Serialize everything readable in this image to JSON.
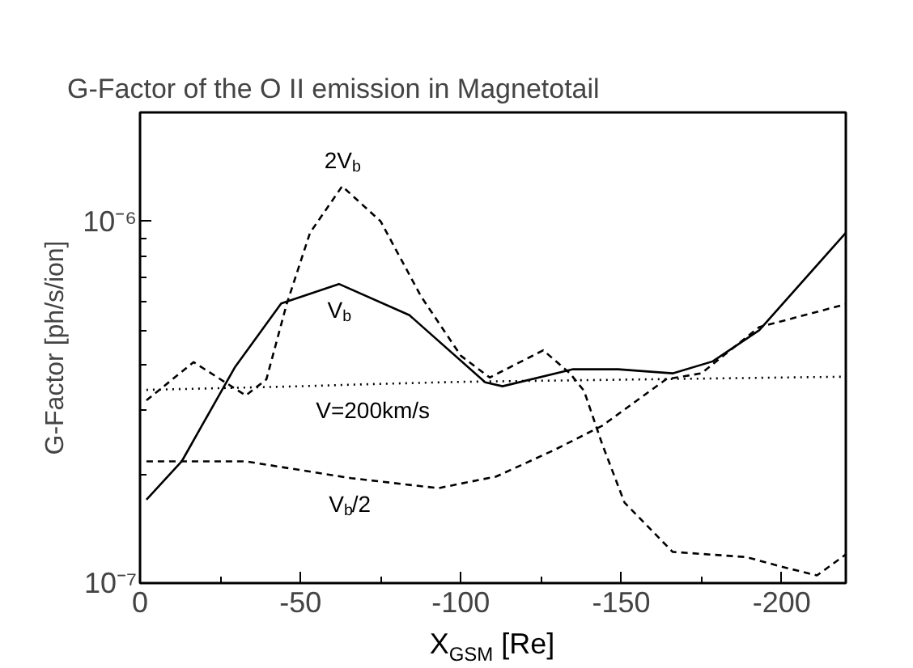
{
  "chart_data": {
    "type": "line",
    "title": "G-Factor of the O II emission in Magnetotail",
    "xlabel": "X$_{GSM}$ [Re]",
    "ylabel": "G-Factor [ph/s/ion]",
    "log": "y",
    "grid": false,
    "xlim": [
      0,
      -220
    ],
    "xticks": [
      0,
      -50,
      -100,
      -150,
      -200,
      {
        "value": -25,
        "label": null
      },
      {
        "value": -75,
        "label": null
      },
      {
        "value": -125,
        "label": null
      },
      {
        "value": -175,
        "label": null
      }
    ],
    "ylim": [
      1e-07,
      2e-06
    ],
    "yticks": [
      {
        "value": 1e-07,
        "label": "10⁻⁷"
      },
      {
        "value": 1e-06,
        "label": "10⁻⁶"
      },
      {
        "value": 2e-07,
        "label": null
      },
      {
        "value": 3e-07,
        "label": null
      },
      {
        "value": 4e-07,
        "label": null
      },
      {
        "value": 5e-07,
        "label": null
      },
      {
        "value": 6e-07,
        "label": null
      },
      {
        "value": 7e-07,
        "label": null
      },
      {
        "value": 8e-07,
        "label": null
      },
      {
        "value": 9e-07,
        "label": null
      },
      {
        "value": 2e-06,
        "label": null
      }
    ],
    "series": [
      {
        "color": "#000000",
        "line_style": "solid",
        "x": [
          -2,
          -13,
          -29.5,
          -44,
          -62,
          -84,
          -107.6,
          -113,
          -135,
          -149,
          -166,
          -178.5,
          -193,
          -220
        ],
        "values": [
          1.7e-07,
          2.17e-07,
          3.94e-07,
          5.93e-07,
          6.71e-07,
          5.5e-07,
          3.59e-07,
          3.5e-07,
          3.9e-07,
          3.9e-07,
          3.8e-07,
          4.1e-07,
          5e-07,
          9.3e-07
        ]
      },
      {
        "color": "#000000",
        "line_style": "dashed",
        "x": [
          -2,
          -16.7,
          -33,
          -39.4,
          -45.7,
          -53,
          -63,
          -75,
          -87.6,
          -100,
          -109,
          -125.7,
          -134,
          -138.4,
          -144,
          -151,
          -166,
          -189,
          -200,
          -211,
          -220
        ],
        "values": [
          3.2e-07,
          4.08e-07,
          3.3e-07,
          3.66e-07,
          5.9e-07,
          9.3e-07,
          1.25e-06,
          1e-06,
          6.2e-07,
          4.25e-07,
          3.7e-07,
          4.4e-07,
          3.8e-07,
          3.4e-07,
          2.43e-07,
          1.67e-07,
          1.22e-07,
          1.18e-07,
          1.11e-07,
          1.05e-07,
          1.2e-07
        ]
      },
      {
        "color": "#000000",
        "line_style": "dotted",
        "x": [
          -2,
          -50,
          -73,
          -100,
          -150,
          -220
        ],
        "values": [
          3.42e-07,
          3.5e-07,
          3.55e-07,
          3.6e-07,
          3.65e-07,
          3.72e-07
        ]
      },
      {
        "color": "#000000",
        "line_style": "dashed",
        "x": [
          -2,
          -33,
          -65.8,
          -93,
          -111,
          -129,
          -144,
          -164,
          -175,
          -193,
          -220
        ],
        "values": [
          2.17e-07,
          2.17e-07,
          1.95e-07,
          1.83e-07,
          1.97e-07,
          2.33e-07,
          2.72e-07,
          3.66e-07,
          3.8e-07,
          5.1e-07,
          5.9e-07
        ]
      }
    ],
    "annotations": [
      {
        "text": "2V$_{b}$",
        "x": -63,
        "y": 1.25e-06
      },
      {
        "text": "V$_{b}$",
        "x": -62,
        "y": 6.71e-07
      },
      {
        "text": "V=200km/s",
        "x": -73,
        "y": 3.55e-07
      },
      {
        "text": "V$_{b}$/2",
        "x": -65.8,
        "y": 1.95e-07
      }
    ]
  }
}
